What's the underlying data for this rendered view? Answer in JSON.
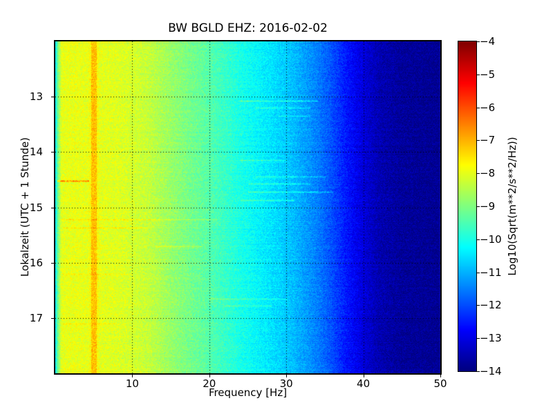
{
  "figure": {
    "background_color": "#ffffff",
    "text_color": "#000000"
  },
  "chart_data": {
    "type": "heatmap",
    "title": "BW BGLD EHZ: 2016-02-02",
    "xlabel": "Frequency [Hz]",
    "ylabel": "Lokalzeit (UTC + 1 Stunde)",
    "xlim": [
      0,
      50
    ],
    "ylim_hours": [
      12,
      18
    ],
    "xticks": [
      10,
      20,
      30,
      40,
      50
    ],
    "xtick_labels": [
      "10",
      "20",
      "30",
      "40",
      "50"
    ],
    "yticks": [
      13,
      14,
      15,
      16,
      17
    ],
    "ytick_labels": [
      "13",
      "14",
      "15",
      "16",
      "17"
    ],
    "grid": true,
    "grid_style": "dotted-black",
    "colorbar": {
      "label": "Log10(Sqrt(m**2/s**2/Hz))",
      "colormap": "jet",
      "vmin": -14,
      "vmax": -4,
      "ticks": [
        -4,
        -5,
        -6,
        -7,
        -8,
        -9,
        -10,
        -11,
        -12,
        -13,
        -14
      ],
      "tick_labels": [
        "−4",
        "−5",
        "−6",
        "−7",
        "−8",
        "−9",
        "−10",
        "−11",
        "−12",
        "−13",
        "−14"
      ]
    },
    "spectrum_profile": [
      [
        0,
        -10.4
      ],
      [
        0.3,
        -9.2
      ],
      [
        0.8,
        -8.0
      ],
      [
        2,
        -7.95
      ],
      [
        5,
        -8.0
      ],
      [
        8,
        -8.05
      ],
      [
        12,
        -8.3
      ],
      [
        16,
        -8.9
      ],
      [
        20,
        -9.4
      ],
      [
        24,
        -10.0
      ],
      [
        28,
        -10.5
      ],
      [
        31,
        -10.9
      ],
      [
        34,
        -11.5
      ],
      [
        36,
        -12.0
      ],
      [
        38,
        -12.6
      ],
      [
        40,
        -13.1
      ],
      [
        42,
        -13.5
      ],
      [
        45,
        -13.75
      ],
      [
        50,
        -13.85
      ]
    ],
    "noise_amplitude": 0.4,
    "features": {
      "vertical_stripe": {
        "f1": 4.7,
        "f2": 5.4,
        "boost": 0.85
      },
      "streaks": [
        {
          "hour": 13.07,
          "f1": 24,
          "f2": 34,
          "boost": 0.8
        },
        {
          "hour": 13.2,
          "f1": 26,
          "f2": 33,
          "boost": 0.6
        },
        {
          "hour": 13.35,
          "f1": 29,
          "f2": 33,
          "boost": 0.5
        },
        {
          "hour": 14.15,
          "f1": 24,
          "f2": 30,
          "boost": 0.55
        },
        {
          "hour": 14.45,
          "f1": 26,
          "f2": 35,
          "boost": 0.6
        },
        {
          "hour": 14.52,
          "f1": 0.3,
          "f2": 4.3,
          "boost": 1.6
        },
        {
          "hour": 14.57,
          "f1": 25,
          "f2": 33,
          "boost": 0.7
        },
        {
          "hour": 14.72,
          "f1": 25,
          "f2": 36,
          "boost": 0.8
        },
        {
          "hour": 14.87,
          "f1": 24,
          "f2": 31,
          "boost": 0.6
        },
        {
          "hour": 15.22,
          "f1": 0.5,
          "f2": 21,
          "boost": 0.5
        },
        {
          "hour": 15.37,
          "f1": 1,
          "f2": 12,
          "boost": 0.4
        },
        {
          "hour": 15.7,
          "f1": 13,
          "f2": 19,
          "boost": 0.5
        },
        {
          "hour": 16.2,
          "f1": 1,
          "f2": 10,
          "boost": 0.35
        },
        {
          "hour": 16.65,
          "f1": 20,
          "f2": 30,
          "boost": 0.55
        },
        {
          "hour": 16.78,
          "f1": 22,
          "f2": 28,
          "boost": 0.5
        },
        {
          "hour": 17.1,
          "f1": 1,
          "f2": 8,
          "boost": 0.3
        }
      ]
    }
  }
}
